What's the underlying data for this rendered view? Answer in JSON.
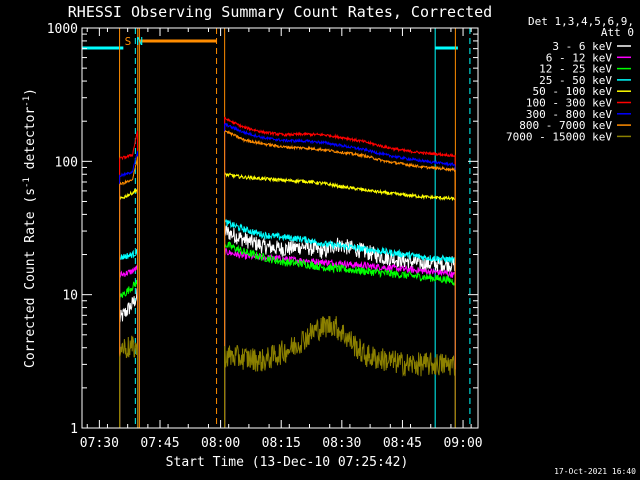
{
  "chart_data": {
    "type": "line",
    "title": "RHESSI Observing Summary Count Rates, Corrected",
    "xlabel": "Start Time (13-Dec-10 07:25:42)",
    "ylabel_parts": {
      "main": "Corrected Count Rate (s",
      "exp1": "-1",
      "mid": " detector",
      "exp2": "-1",
      "end": ")"
    },
    "x_unit": "minutes since 07:25:42 on 13-Dec-10",
    "xlim": [
      0,
      98
    ],
    "ylim": [
      1,
      1000
    ],
    "yscale": "log",
    "x_ticks": [
      {
        "x": 4.3,
        "label": "07:30"
      },
      {
        "x": 19.3,
        "label": "07:45"
      },
      {
        "x": 34.3,
        "label": "08:00"
      },
      {
        "x": 49.3,
        "label": "08:15"
      },
      {
        "x": 64.3,
        "label": "08:30"
      },
      {
        "x": 79.3,
        "label": "08:45"
      },
      {
        "x": 94.3,
        "label": "09:00"
      }
    ],
    "y_ticks": [
      {
        "y": 1,
        "label": "1"
      },
      {
        "y": 10,
        "label": "10"
      },
      {
        "y": 100,
        "label": "100"
      },
      {
        "y": 1000,
        "label": "1000"
      }
    ],
    "legend": {
      "placement": "top-right",
      "header": [
        "Det 1,3,4,5,6,9,",
        "Att 0"
      ]
    },
    "timestamp": "17-Oct-2021 16:40",
    "annotations": [
      {
        "text": "S",
        "x": 11.3,
        "color": "#ff8c00"
      },
      {
        "text": "N",
        "x": 14.2,
        "color": "#00ffff"
      }
    ],
    "intervals": {
      "night": [
        [
          0,
          13.2
        ],
        [
          87.4,
          96
        ]
      ],
      "saa": [
        [
          14.2,
          33.3
        ]
      ]
    },
    "segments": [
      [
        9.3,
        13.8
      ],
      [
        35.3,
        92.4
      ]
    ],
    "series": [
      {
        "name": "3 - 6 keV",
        "color": "#ffffff",
        "noise": 0.12,
        "points": [
          [
            9.3,
            6.5
          ],
          [
            11,
            7.5
          ],
          [
            12.5,
            8.5
          ],
          [
            13.8,
            10
          ],
          [
            35.3,
            30
          ],
          [
            40,
            26
          ],
          [
            45,
            23
          ],
          [
            50,
            22
          ],
          [
            55,
            23
          ],
          [
            60,
            21
          ],
          [
            63,
            24
          ],
          [
            65,
            23
          ],
          [
            70,
            21
          ],
          [
            75,
            19
          ],
          [
            80,
            18
          ],
          [
            85,
            17
          ],
          [
            90,
            17
          ],
          [
            92.4,
            17
          ]
        ]
      },
      {
        "name": "6 - 12 keV",
        "color": "#ff00ff",
        "noise": 0.05,
        "points": [
          [
            9.3,
            14
          ],
          [
            11,
            14.5
          ],
          [
            12.5,
            15
          ],
          [
            13.8,
            16
          ],
          [
            35.3,
            21
          ],
          [
            40,
            19.5
          ],
          [
            45,
            19
          ],
          [
            50,
            18.5
          ],
          [
            55,
            18
          ],
          [
            60,
            17.5
          ],
          [
            65,
            17
          ],
          [
            70,
            16.5
          ],
          [
            75,
            16
          ],
          [
            80,
            15.5
          ],
          [
            85,
            15
          ],
          [
            90,
            14.5
          ],
          [
            92.4,
            14
          ]
        ]
      },
      {
        "name": "12 - 25 keV",
        "color": "#00ff00",
        "noise": 0.06,
        "points": [
          [
            9.3,
            9.5
          ],
          [
            11,
            10.5
          ],
          [
            12.5,
            11.5
          ],
          [
            13.8,
            12.5
          ],
          [
            35.3,
            24
          ],
          [
            40,
            21
          ],
          [
            45,
            19
          ],
          [
            50,
            17.5
          ],
          [
            55,
            17
          ],
          [
            60,
            16
          ],
          [
            65,
            15.5
          ],
          [
            70,
            15
          ],
          [
            75,
            14.5
          ],
          [
            80,
            14
          ],
          [
            85,
            13.5
          ],
          [
            90,
            13
          ],
          [
            92.4,
            12.5
          ]
        ]
      },
      {
        "name": "25 - 50 keV",
        "color": "#00ffff",
        "noise": 0.05,
        "points": [
          [
            9.3,
            19
          ],
          [
            11,
            19.5
          ],
          [
            12.5,
            20
          ],
          [
            13.8,
            21
          ],
          [
            35.3,
            35
          ],
          [
            40,
            31
          ],
          [
            45,
            28
          ],
          [
            50,
            27
          ],
          [
            55,
            26
          ],
          [
            60,
            24
          ],
          [
            65,
            23
          ],
          [
            70,
            22
          ],
          [
            75,
            21
          ],
          [
            80,
            20
          ],
          [
            85,
            19
          ],
          [
            90,
            18.5
          ],
          [
            92.4,
            18
          ]
        ]
      },
      {
        "name": "50 - 100 keV",
        "color": "#ffff00",
        "noise": 0.025,
        "points": [
          [
            9.3,
            52
          ],
          [
            11,
            55
          ],
          [
            12.5,
            58
          ],
          [
            13.8,
            62
          ],
          [
            35.3,
            80
          ],
          [
            40,
            76
          ],
          [
            45,
            74
          ],
          [
            50,
            72
          ],
          [
            55,
            71
          ],
          [
            60,
            68
          ],
          [
            65,
            64
          ],
          [
            70,
            61
          ],
          [
            75,
            58
          ],
          [
            80,
            56
          ],
          [
            85,
            54
          ],
          [
            90,
            53
          ],
          [
            92.4,
            52
          ]
        ]
      },
      {
        "name": "100 - 300 keV",
        "color": "#ff0000",
        "noise": 0.02,
        "points": [
          [
            9.3,
            105
          ],
          [
            11,
            108
          ],
          [
            12.5,
            112
          ],
          [
            13.8,
            175
          ],
          [
            35.3,
            210
          ],
          [
            40,
            180
          ],
          [
            45,
            165
          ],
          [
            50,
            158
          ],
          [
            55,
            160
          ],
          [
            60,
            158
          ],
          [
            65,
            150
          ],
          [
            70,
            140
          ],
          [
            75,
            128
          ],
          [
            80,
            120
          ],
          [
            85,
            115
          ],
          [
            90,
            112
          ],
          [
            92.4,
            110
          ]
        ]
      },
      {
        "name": "300 - 800 keV",
        "color": "#0000ff",
        "noise": 0.02,
        "points": [
          [
            9.3,
            78
          ],
          [
            11,
            80
          ],
          [
            12.5,
            84
          ],
          [
            13.8,
            120
          ],
          [
            35.3,
            190
          ],
          [
            40,
            165
          ],
          [
            45,
            150
          ],
          [
            50,
            143
          ],
          [
            55,
            142
          ],
          [
            60,
            138
          ],
          [
            65,
            130
          ],
          [
            70,
            122
          ],
          [
            75,
            112
          ],
          [
            80,
            105
          ],
          [
            85,
            100
          ],
          [
            90,
            96
          ],
          [
            92.4,
            94
          ]
        ]
      },
      {
        "name": "800 - 7000 keV",
        "color": "#ff8c00",
        "noise": 0.02,
        "points": [
          [
            9.3,
            67
          ],
          [
            11,
            70
          ],
          [
            12.5,
            72
          ],
          [
            13.8,
            110
          ],
          [
            35.3,
            170
          ],
          [
            40,
            145
          ],
          [
            45,
            135
          ],
          [
            50,
            128
          ],
          [
            55,
            126
          ],
          [
            60,
            122
          ],
          [
            65,
            116
          ],
          [
            70,
            110
          ],
          [
            75,
            100
          ],
          [
            80,
            95
          ],
          [
            85,
            90
          ],
          [
            90,
            88
          ],
          [
            92.4,
            86
          ]
        ]
      },
      {
        "name": "7000 - 15000 keV",
        "color": "#8b8000",
        "noise": 0.18,
        "points": [
          [
            9.3,
            4
          ],
          [
            11,
            4
          ],
          [
            12.5,
            4
          ],
          [
            13.8,
            4
          ],
          [
            35.3,
            3.5
          ],
          [
            45,
            3.2
          ],
          [
            52,
            4
          ],
          [
            58,
            5.5
          ],
          [
            62,
            6
          ],
          [
            65,
            5
          ],
          [
            70,
            3.5
          ],
          [
            80,
            3
          ],
          [
            92.4,
            3
          ]
        ]
      }
    ]
  }
}
